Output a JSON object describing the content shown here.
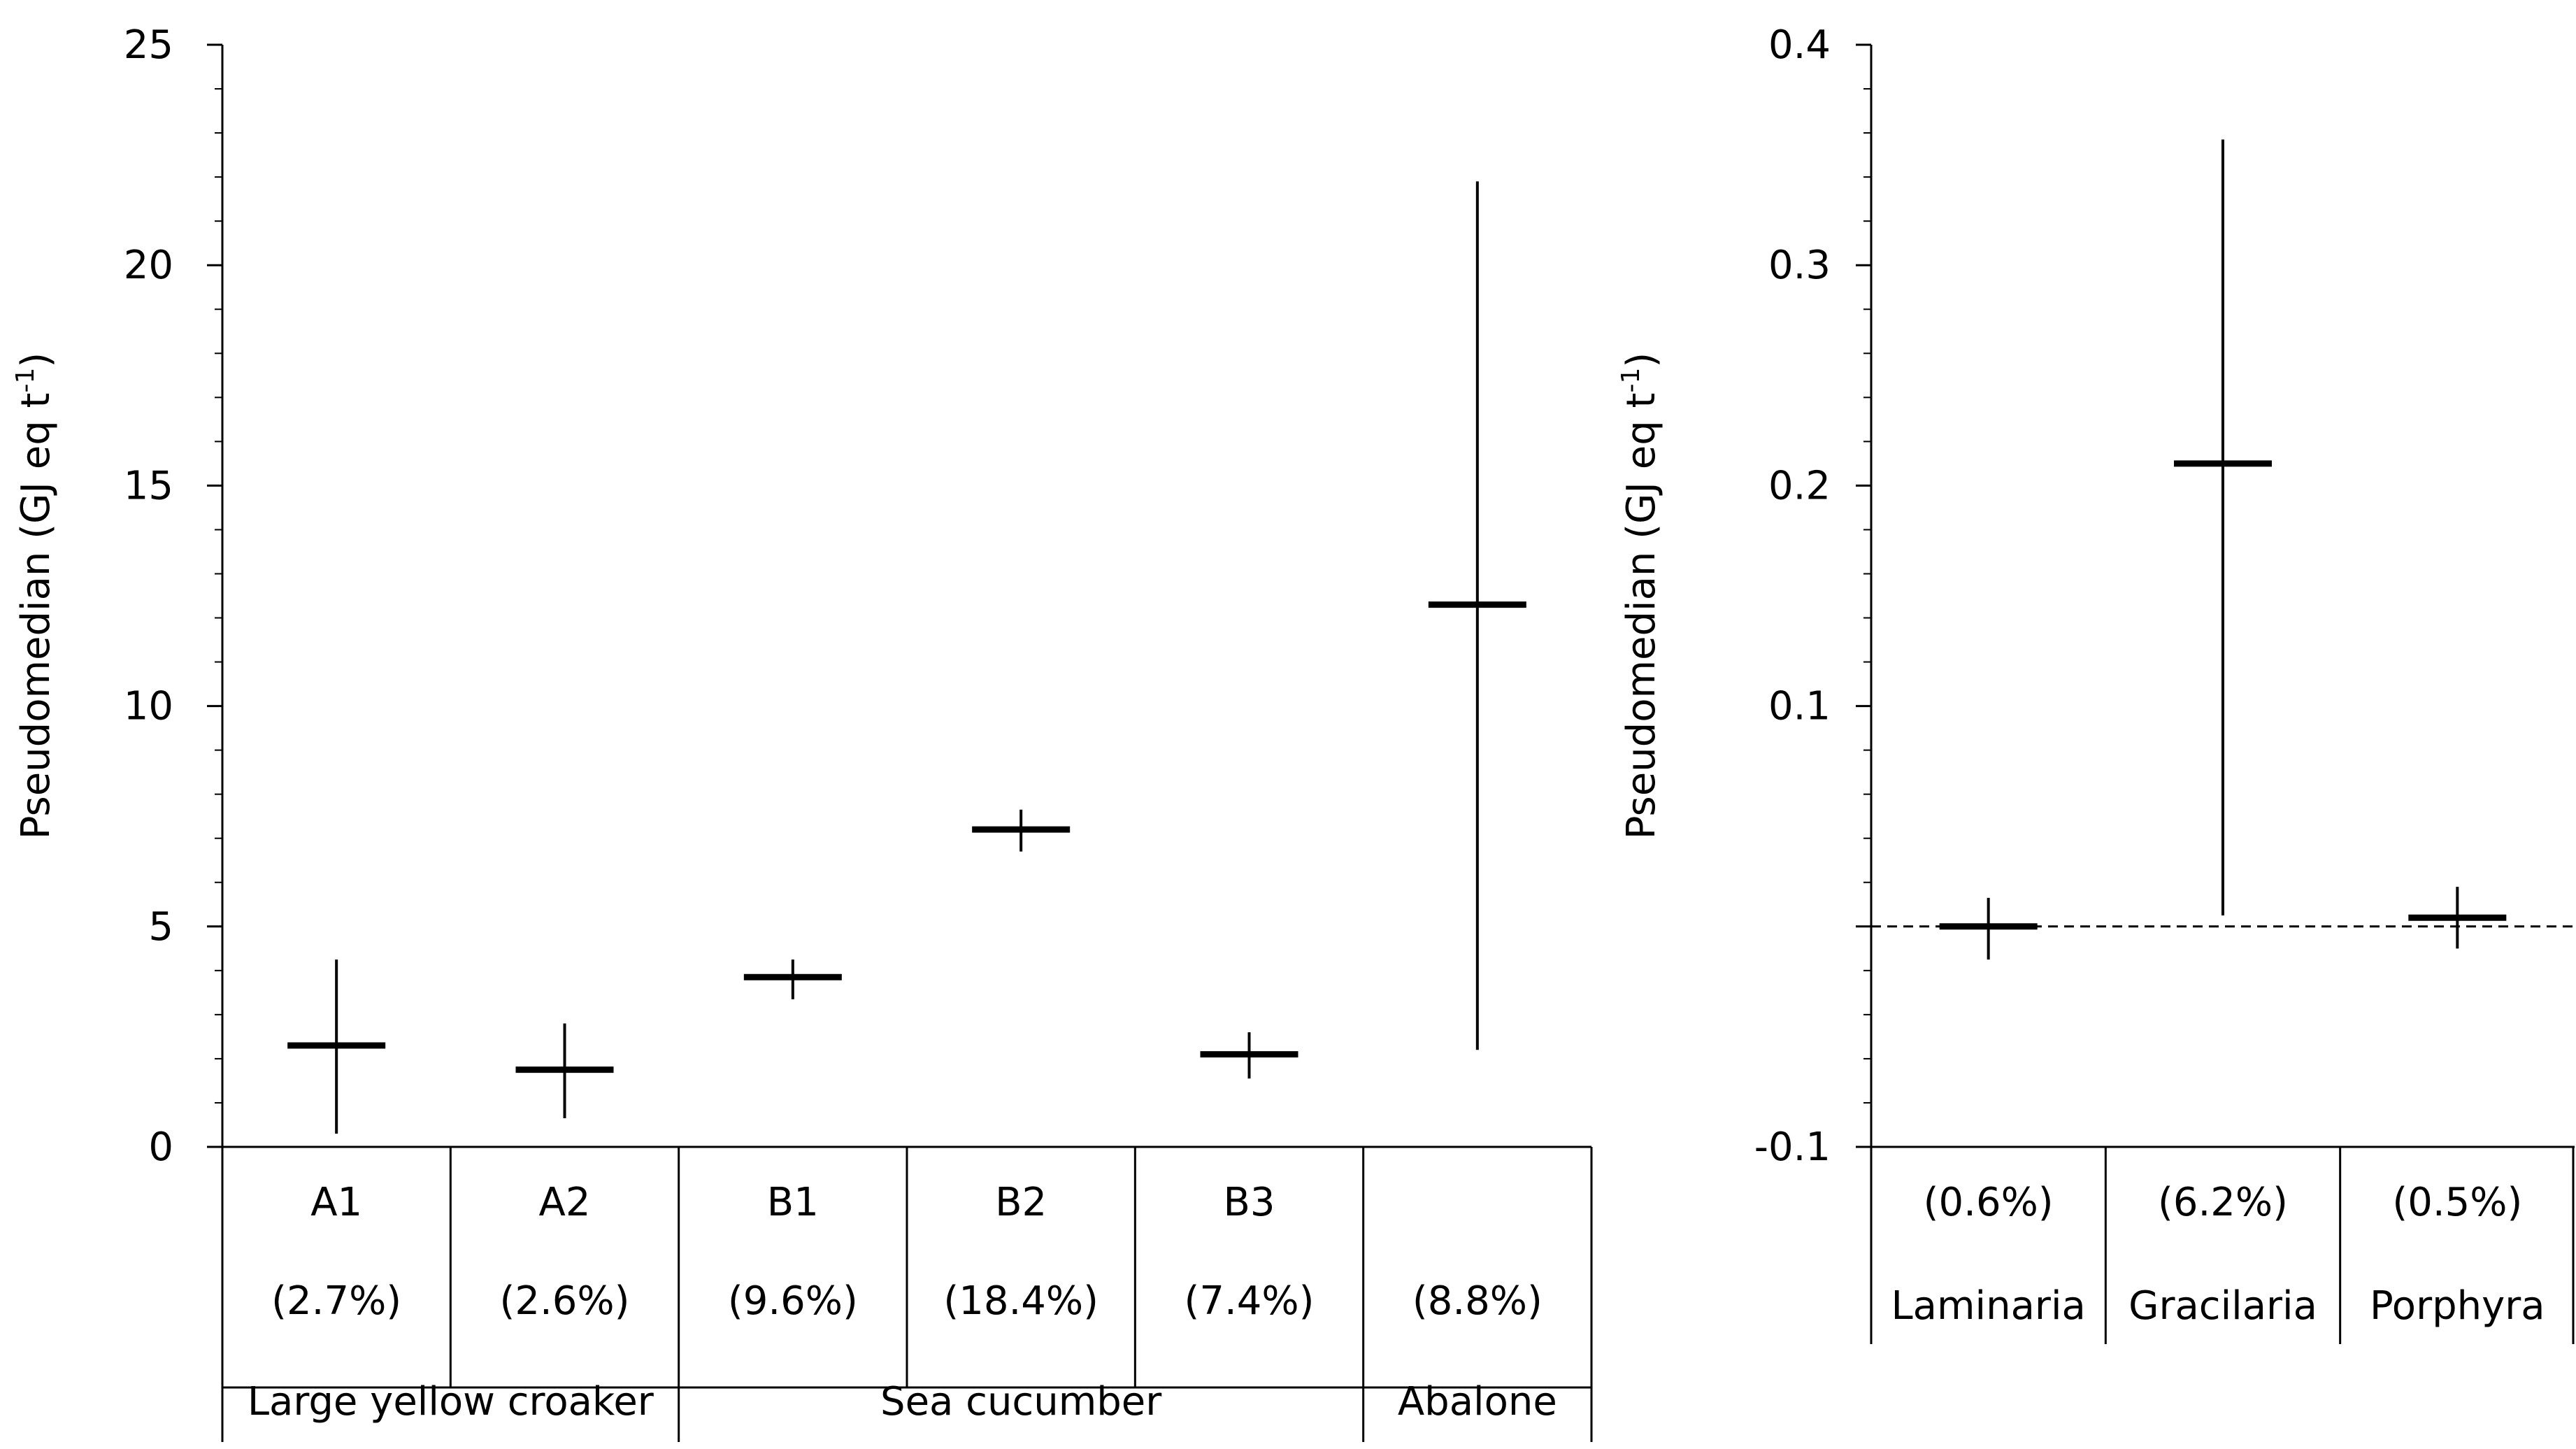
{
  "chart_data": [
    {
      "type": "scatter",
      "ylabel": "Pseudomedian (GJ eq t",
      "ylabel_sup": "-1",
      "ylabel_close": ")",
      "ylim": [
        0,
        25
      ],
      "yticks": [
        0,
        5,
        10,
        15,
        20,
        25
      ],
      "ytick_labels": [
        "0",
        "5",
        "10",
        "15",
        "20",
        "25"
      ],
      "categories": [
        "A1",
        "A2",
        "B1",
        "B2",
        "B3",
        ""
      ],
      "percentages": [
        "(2.7%)",
        "(2.6%)",
        "(9.6%)",
        "(18.4%)",
        "(7.4%)",
        "(8.8%)"
      ],
      "groups": [
        {
          "label": "Large yellow croaker",
          "members": [
            "A1",
            "A2"
          ]
        },
        {
          "label": "Sea cucumber",
          "members": [
            "B1",
            "B2",
            "B3"
          ]
        },
        {
          "label": "Abalone",
          "members": [
            ""
          ]
        }
      ],
      "series": [
        {
          "name": "Pseudomedian",
          "values": [
            2.3,
            1.75,
            3.85,
            7.2,
            2.1,
            12.3
          ]
        },
        {
          "name": "Lower CI",
          "values": [
            0.3,
            0.65,
            3.35,
            6.7,
            1.55,
            2.2
          ]
        },
        {
          "name": "Upper CI",
          "values": [
            4.25,
            2.8,
            4.25,
            7.65,
            2.6,
            21.9
          ]
        }
      ]
    },
    {
      "type": "scatter",
      "ylabel": "Pseudomedian (GJ eq t",
      "ylabel_sup": "-1",
      "ylabel_close": ")",
      "ylim": [
        -0.1,
        0.4
      ],
      "yticks": [
        -0.1,
        0.1,
        0.2,
        0.3,
        0.4
      ],
      "ytick_labels": [
        "-0.1",
        "0.1",
        "0.2",
        "0.3",
        "0.4"
      ],
      "baseline": 0,
      "categories": [
        "Laminaria",
        "Gracilaria",
        "Porphyra"
      ],
      "percentages": [
        "(0.6%)",
        "(6.2%)",
        "(0.5%)"
      ],
      "series": [
        {
          "name": "Pseudomedian",
          "values": [
            0.0,
            0.21,
            0.004
          ]
        },
        {
          "name": "Lower CI",
          "values": [
            -0.015,
            0.005,
            -0.01
          ]
        },
        {
          "name": "Upper CI",
          "values": [
            0.013,
            0.357,
            0.018
          ]
        }
      ]
    }
  ]
}
